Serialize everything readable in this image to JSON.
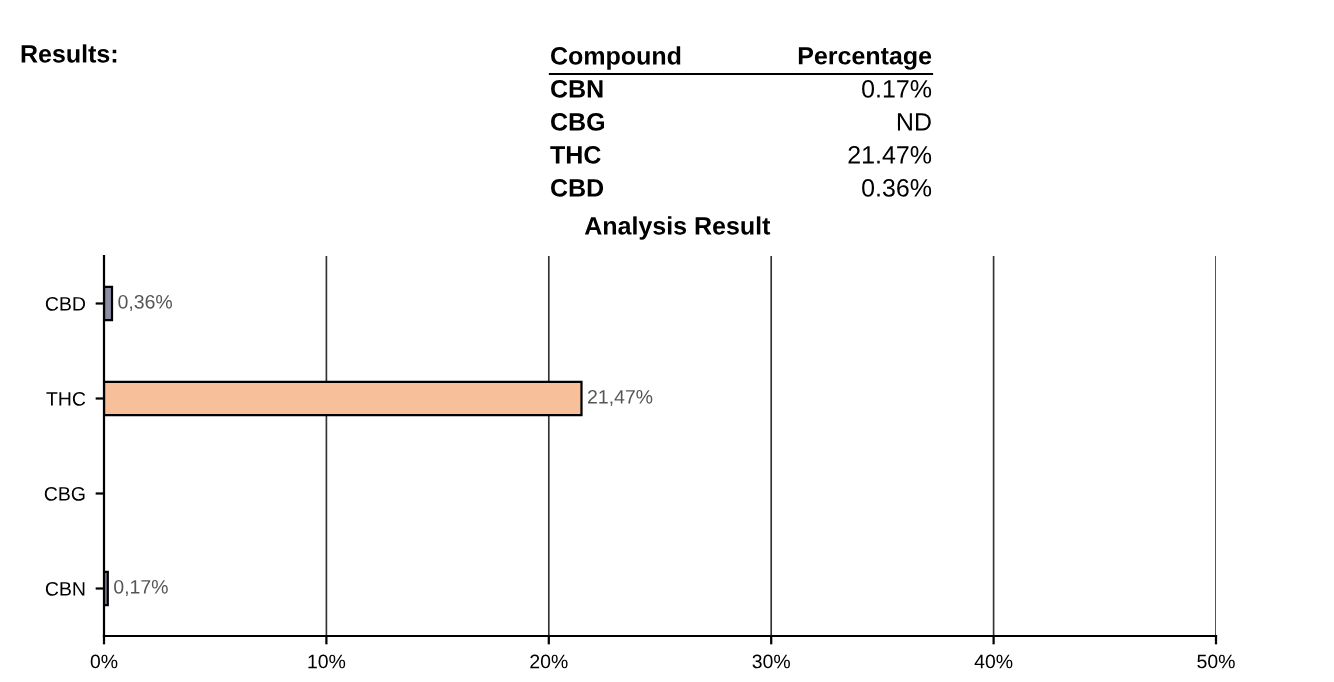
{
  "chart_data": {
    "type": "bar",
    "orientation": "horizontal",
    "title": "Analysis Result",
    "categories": [
      "CBD",
      "THC",
      "CBG",
      "CBN"
    ],
    "values": [
      0.36,
      21.47,
      null,
      0.17
    ],
    "colors": [
      "#8e8ea8",
      "#f8c09a",
      "#cccccc",
      "#8e8ea8"
    ],
    "value_labels": [
      "0,36%",
      "21,47%",
      null,
      "0,17%"
    ],
    "xlim": [
      0,
      50
    ],
    "xticks": [
      {
        "value": 0,
        "label": "0%"
      },
      {
        "value": 10,
        "label": "10%"
      },
      {
        "value": 20,
        "label": "20%"
      },
      {
        "value": 30,
        "label": "30%"
      },
      {
        "value": 40,
        "label": "40%"
      },
      {
        "value": 50,
        "label": "50%"
      }
    ],
    "grid": "x",
    "annotations": [
      "Results:",
      "Compound",
      "Percentage",
      "CBN",
      "0.17%",
      "CBG",
      "ND",
      "THC",
      "21.47%",
      "CBD",
      "0.36%"
    ]
  }
}
